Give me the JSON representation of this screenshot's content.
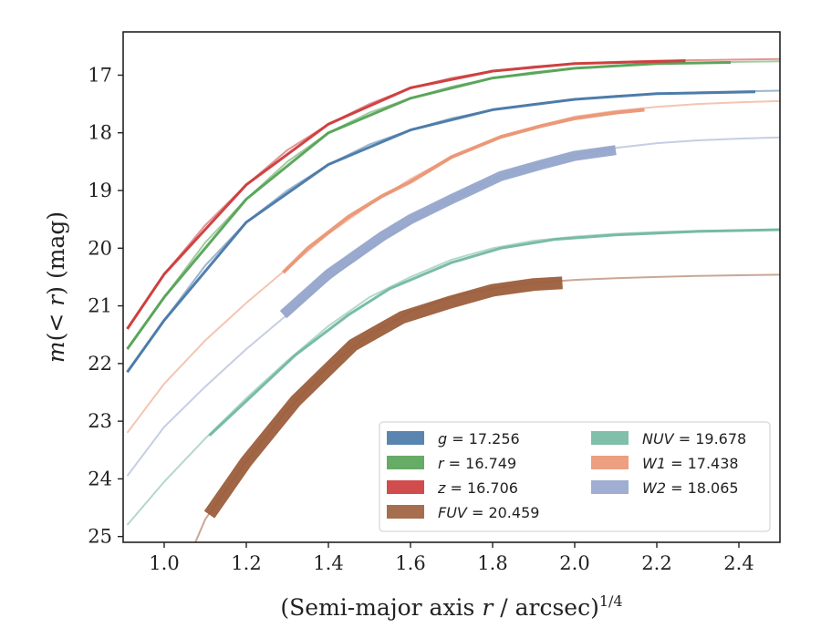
{
  "chart_data": {
    "type": "line",
    "title": "",
    "xlabel": "(Semi-major axis r / arcsec)^{1/4}",
    "ylabel": "m(< r) (mag)",
    "xlim": [
      0.9,
      2.5
    ],
    "ylim": [
      25.1,
      16.25
    ],
    "y_inverted": true,
    "grid": false,
    "legend_position": "lower-right",
    "x_ticks": [
      "1.0",
      "1.2",
      "1.4",
      "1.6",
      "1.8",
      "2.0",
      "2.2",
      "2.4"
    ],
    "y_ticks": [
      "17",
      "18",
      "19",
      "20",
      "21",
      "22",
      "23",
      "24",
      "25"
    ],
    "series": [
      {
        "name": "g",
        "label": "g = 17.256",
        "color": "#4878a8",
        "model_x": [
          0.91,
          1.0,
          1.1,
          1.2,
          1.3,
          1.4,
          1.5,
          1.6,
          1.7,
          1.8,
          1.9,
          2.0,
          2.1,
          2.2,
          2.3,
          2.4,
          2.5
        ],
        "model_y": [
          22.15,
          21.25,
          20.3,
          19.55,
          19.0,
          18.55,
          18.2,
          17.95,
          17.75,
          17.6,
          17.5,
          17.42,
          17.36,
          17.32,
          17.3,
          17.28,
          17.27
        ],
        "obs_x": [
          0.91,
          1.0,
          1.2,
          1.4,
          1.6,
          1.8,
          2.0,
          2.2,
          2.44
        ],
        "obs_y": [
          22.15,
          21.25,
          19.55,
          18.55,
          17.95,
          17.6,
          17.42,
          17.32,
          17.29
        ],
        "obs_width": 3
      },
      {
        "name": "r",
        "label": "r = 16.749",
        "color": "#55a255",
        "model_x": [
          0.91,
          1.0,
          1.1,
          1.2,
          1.3,
          1.4,
          1.5,
          1.6,
          1.7,
          1.8,
          1.9,
          2.0,
          2.1,
          2.2,
          2.3,
          2.4,
          2.5
        ],
        "model_y": [
          21.75,
          20.85,
          19.9,
          19.15,
          18.5,
          18.0,
          17.65,
          17.4,
          17.2,
          17.05,
          16.95,
          16.88,
          16.83,
          16.8,
          16.78,
          16.77,
          16.76
        ],
        "obs_x": [
          0.91,
          1.0,
          1.2,
          1.4,
          1.6,
          1.8,
          2.0,
          2.2,
          2.38
        ],
        "obs_y": [
          21.75,
          20.85,
          19.15,
          18.0,
          17.4,
          17.05,
          16.88,
          16.8,
          16.78
        ],
        "obs_width": 3
      },
      {
        "name": "z",
        "label": "z = 16.706",
        "color": "#cc3a3a",
        "model_x": [
          0.91,
          1.0,
          1.1,
          1.2,
          1.3,
          1.4,
          1.5,
          1.6,
          1.7,
          1.8,
          1.9,
          2.0,
          2.1,
          2.2,
          2.3,
          2.4,
          2.5
        ],
        "model_y": [
          21.4,
          20.45,
          19.6,
          18.9,
          18.3,
          17.85,
          17.5,
          17.22,
          17.05,
          16.93,
          16.85,
          16.8,
          16.77,
          16.75,
          16.74,
          16.73,
          16.72
        ],
        "obs_x": [
          0.91,
          1.0,
          1.2,
          1.4,
          1.6,
          1.8,
          2.0,
          2.27
        ],
        "obs_y": [
          21.4,
          20.45,
          18.9,
          17.85,
          17.22,
          16.93,
          16.8,
          16.75
        ],
        "obs_width": 3
      },
      {
        "name": "W1",
        "label": "W1 = 17.438",
        "color": "#ea9573",
        "model_x": [
          0.91,
          1.0,
          1.1,
          1.2,
          1.3,
          1.4,
          1.5,
          1.6,
          1.7,
          1.8,
          1.9,
          2.0,
          2.1,
          2.2,
          2.3,
          2.4,
          2.5
        ],
        "model_y": [
          23.2,
          22.35,
          21.6,
          20.95,
          20.35,
          19.75,
          19.25,
          18.8,
          18.42,
          18.13,
          17.9,
          17.72,
          17.62,
          17.55,
          17.5,
          17.47,
          17.45
        ],
        "obs_x": [
          1.29,
          1.35,
          1.45,
          1.53,
          1.6,
          1.7,
          1.82,
          1.92,
          2.0,
          2.1,
          2.17
        ],
        "obs_y": [
          20.42,
          20.0,
          19.45,
          19.1,
          18.85,
          18.42,
          18.07,
          17.88,
          17.75,
          17.65,
          17.6
        ],
        "obs_width": 4
      },
      {
        "name": "W2",
        "label": "W2 = 18.065",
        "color": "#95a5cc",
        "model_x": [
          0.91,
          1.0,
          1.1,
          1.2,
          1.3,
          1.4,
          1.5,
          1.6,
          1.7,
          1.8,
          1.9,
          2.0,
          2.1,
          2.2,
          2.3,
          2.4,
          2.5
        ],
        "model_y": [
          23.95,
          23.1,
          22.4,
          21.75,
          21.15,
          20.55,
          20.0,
          19.55,
          19.15,
          18.8,
          18.55,
          18.38,
          18.26,
          18.18,
          18.13,
          18.1,
          18.08
        ],
        "obs_x": [
          1.29,
          1.4,
          1.53,
          1.6,
          1.7,
          1.82,
          1.92,
          2.0,
          2.1
        ],
        "obs_y": [
          21.15,
          20.45,
          19.8,
          19.5,
          19.15,
          18.75,
          18.55,
          18.4,
          18.3
        ],
        "obs_width": 11
      },
      {
        "name": "NUV",
        "label": "NUV = 19.678",
        "color": "#72b8a0",
        "model_x": [
          0.91,
          1.0,
          1.1,
          1.2,
          1.3,
          1.4,
          1.5,
          1.6,
          1.7,
          1.8,
          1.9,
          2.0,
          2.1,
          2.2,
          2.3,
          2.4,
          2.5
        ],
        "model_y": [
          24.8,
          24.05,
          23.3,
          22.6,
          21.95,
          21.35,
          20.85,
          20.5,
          20.2,
          20.0,
          19.87,
          19.8,
          19.75,
          19.72,
          19.7,
          19.69,
          19.68
        ],
        "obs_x": [
          1.11,
          1.2,
          1.32,
          1.45,
          1.55,
          1.7,
          1.82,
          1.95,
          2.1,
          2.3,
          2.5
        ],
        "obs_y": [
          23.25,
          22.65,
          21.85,
          21.15,
          20.7,
          20.25,
          20.0,
          19.85,
          19.77,
          19.71,
          19.68
        ],
        "obs_width": 3
      },
      {
        "name": "FUV",
        "label": "FUV = 20.459",
        "color": "#9c5e3c",
        "model_x": [
          1.07,
          1.1,
          1.2,
          1.3,
          1.4,
          1.5,
          1.6,
          1.7,
          1.8,
          1.9,
          2.0,
          2.1,
          2.2,
          2.3,
          2.4,
          2.5
        ],
        "model_y": [
          25.2,
          24.7,
          23.7,
          22.8,
          22.05,
          21.5,
          21.1,
          20.85,
          20.7,
          20.6,
          20.55,
          20.52,
          20.5,
          20.48,
          20.47,
          20.46
        ],
        "obs_x": [
          1.11,
          1.2,
          1.32,
          1.46,
          1.58,
          1.7,
          1.8,
          1.9,
          1.97
        ],
        "obs_y": [
          24.62,
          23.7,
          22.65,
          21.68,
          21.2,
          20.93,
          20.73,
          20.63,
          20.6
        ],
        "obs_width": 14
      }
    ],
    "legend_columns": [
      [
        "g",
        "r",
        "z",
        "FUV"
      ],
      [
        "NUV",
        "W1",
        "W2"
      ]
    ]
  }
}
